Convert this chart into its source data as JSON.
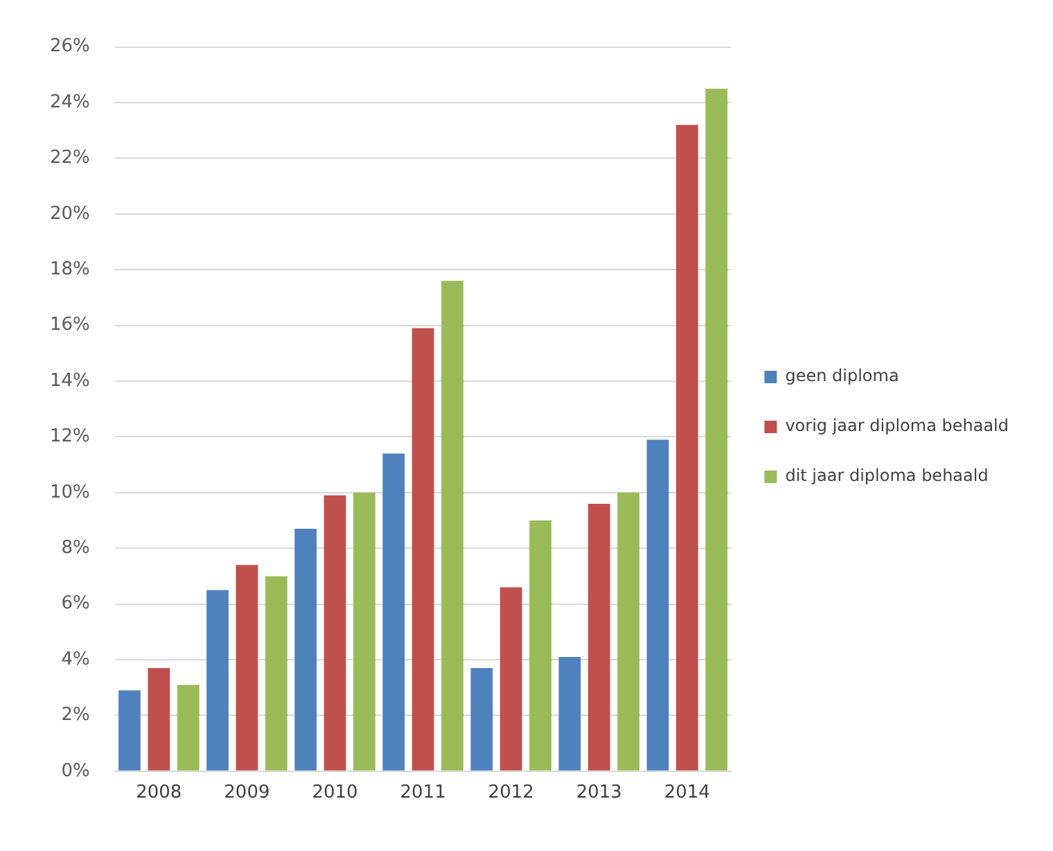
{
  "chart_data": {
    "type": "bar",
    "categories": [
      "2008",
      "2009",
      "2010",
      "2011",
      "2012",
      "2013",
      "2014"
    ],
    "series": [
      {
        "name": "geen diploma",
        "color": "#4f81bd",
        "values": [
          2.9,
          6.5,
          8.7,
          11.4,
          3.7,
          4.1,
          11.9
        ]
      },
      {
        "name": "vorig jaar diploma behaald",
        "color": "#c0504d",
        "values": [
          3.7,
          7.4,
          9.9,
          15.9,
          6.6,
          9.6,
          23.2
        ]
      },
      {
        "name": "dit jaar diploma behaald",
        "color": "#9bbb59",
        "values": [
          3.1,
          7.0,
          10.0,
          17.6,
          9.0,
          10.0,
          24.5
        ]
      }
    ],
    "ylim": [
      0,
      26
    ],
    "yticks": [
      {
        "value": 0,
        "label": "0%"
      },
      {
        "value": 2,
        "label": "2%"
      },
      {
        "value": 4,
        "label": "4%"
      },
      {
        "value": 6,
        "label": "6%"
      },
      {
        "value": 8,
        "label": "8%"
      },
      {
        "value": 10,
        "label": "10%"
      },
      {
        "value": 12,
        "label": "12%"
      },
      {
        "value": 14,
        "label": "14%"
      },
      {
        "value": 16,
        "label": "16%"
      },
      {
        "value": 18,
        "label": "18%"
      },
      {
        "value": 20,
        "label": "20%"
      },
      {
        "value": 22,
        "label": "22%"
      },
      {
        "value": 24,
        "label": "24%"
      },
      {
        "value": 26,
        "label": "26%"
      }
    ],
    "grid": "y",
    "legend": "right"
  }
}
